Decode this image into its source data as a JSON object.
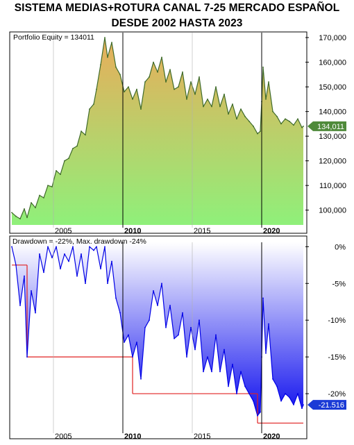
{
  "title_line1": "SISTEMA MEDIAS+ROTURA CANAL 7-25 MERCADO ESPAÑOL",
  "title_line2": "DESDE 2002 HASTA 2023",
  "colors": {
    "equity_line": "#3f6b2a",
    "equity_fill_top": "#e8ad5a",
    "equity_fill_bottom": "#8ff07a",
    "equity_tag": "#4f8a3a",
    "drawdown_line": "#0000e6",
    "drawdown_fill_top": "#ffffff",
    "drawdown_fill_bottom": "#1010ee",
    "max_drawdown_line": "#e02020",
    "drawdown_tag": "#1a3ad6"
  },
  "chart_data": [
    {
      "type": "area",
      "inset_label": "Portfolio Equity = 134011",
      "current_value_label": "134,011",
      "x_ticks": [
        "2005",
        "2010",
        "2015",
        "2020"
      ],
      "x_ticks_bold": [
        "2010",
        "2020"
      ],
      "y_ticks": [
        "100,000",
        "110,000",
        "120,000",
        "130,000",
        "140,000",
        "150,000",
        "160,000",
        "170,000"
      ],
      "ylim": [
        94000,
        172000
      ],
      "xlim": [
        2001.9,
        2023.2
      ],
      "grid": false,
      "x": [
        2002.0,
        2002.3,
        2002.6,
        2002.9,
        2003.1,
        2003.4,
        2003.7,
        2004.0,
        2004.3,
        2004.6,
        2004.9,
        2005.2,
        2005.5,
        2005.8,
        2006.1,
        2006.4,
        2006.7,
        2007.0,
        2007.3,
        2007.6,
        2007.9,
        2008.1,
        2008.4,
        2008.7,
        2008.9,
        2009.2,
        2009.5,
        2009.8,
        2010.1,
        2010.4,
        2010.7,
        2011.0,
        2011.3,
        2011.6,
        2011.9,
        2012.2,
        2012.5,
        2012.8,
        2013.1,
        2013.4,
        2013.7,
        2014.0,
        2014.3,
        2014.6,
        2014.9,
        2015.2,
        2015.5,
        2015.8,
        2016.1,
        2016.4,
        2016.7,
        2017.0,
        2017.3,
        2017.6,
        2017.9,
        2018.2,
        2018.5,
        2018.8,
        2019.1,
        2019.4,
        2019.7,
        2019.9,
        2020.0,
        2020.1,
        2020.3,
        2020.5,
        2020.8,
        2021.1,
        2021.4,
        2021.7,
        2022.0,
        2022.3,
        2022.6,
        2022.9,
        2023.0
      ],
      "y": [
        99000,
        97500,
        96500,
        100500,
        97000,
        103000,
        101000,
        106000,
        105000,
        110000,
        109500,
        116000,
        114500,
        120000,
        121000,
        125000,
        126000,
        132000,
        130500,
        141000,
        143000,
        149000,
        159000,
        170000,
        162000,
        168000,
        158000,
        155000,
        148000,
        150000,
        145000,
        149000,
        141000,
        152000,
        154000,
        160000,
        156000,
        162000,
        152000,
        157000,
        149000,
        150000,
        156000,
        145000,
        152000,
        147000,
        154000,
        142000,
        145000,
        142000,
        150000,
        142000,
        147000,
        139000,
        143000,
        137000,
        141000,
        138000,
        136000,
        134000,
        131000,
        132000,
        144000,
        158000,
        145000,
        152000,
        140000,
        138000,
        135000,
        137000,
        136000,
        134500,
        137000,
        133500,
        134011
      ]
    },
    {
      "type": "area",
      "inset_label": "Drawdown = -22%, Max. drawdown -24%",
      "current_value_label": "-21.516",
      "x_ticks": [
        "2005",
        "2010",
        "2015",
        "2020"
      ],
      "x_ticks_bold": [
        "2010",
        "2020"
      ],
      "y_ticks": [
        "0%",
        "-5%",
        "-10%",
        "-15%",
        "-20%"
      ],
      "ylim": [
        -25.0,
        0.6
      ],
      "xlim": [
        2001.9,
        2023.2
      ],
      "grid": false,
      "x": [
        2002.0,
        2002.3,
        2002.6,
        2002.9,
        2003.1,
        2003.4,
        2003.7,
        2004.0,
        2004.3,
        2004.6,
        2004.9,
        2005.2,
        2005.5,
        2005.8,
        2006.1,
        2006.4,
        2006.7,
        2007.0,
        2007.3,
        2007.6,
        2007.9,
        2008.1,
        2008.4,
        2008.7,
        2008.9,
        2009.2,
        2009.5,
        2009.8,
        2010.1,
        2010.4,
        2010.7,
        2011.0,
        2011.3,
        2011.6,
        2011.9,
        2012.2,
        2012.5,
        2012.8,
        2013.1,
        2013.4,
        2013.7,
        2014.0,
        2014.3,
        2014.6,
        2014.9,
        2015.2,
        2015.5,
        2015.8,
        2016.1,
        2016.4,
        2016.7,
        2017.0,
        2017.3,
        2017.6,
        2017.9,
        2018.2,
        2018.5,
        2018.8,
        2019.1,
        2019.4,
        2019.7,
        2019.9,
        2020.0,
        2020.1,
        2020.3,
        2020.5,
        2020.8,
        2021.1,
        2021.4,
        2021.7,
        2022.0,
        2022.3,
        2022.6,
        2022.9,
        2023.0
      ],
      "y": [
        0,
        -2.5,
        -8.0,
        -4.0,
        -15.0,
        -6.0,
        -9.0,
        -1.0,
        -3.5,
        0,
        -1.5,
        0,
        -3.0,
        -1.0,
        -2.0,
        0,
        -4.0,
        -1.0,
        -5.0,
        0,
        -0.5,
        0,
        -3.0,
        0,
        -5.0,
        -2.0,
        -7.0,
        -9.0,
        -13.0,
        -12.0,
        -15.0,
        -13.0,
        -18.0,
        -11.0,
        -10.0,
        -6.0,
        -8.0,
        -5.0,
        -11.0,
        -8.0,
        -12.5,
        -12.0,
        -9.0,
        -15.0,
        -11.0,
        -14.0,
        -10.0,
        -17.0,
        -15.0,
        -17.0,
        -12.0,
        -17.0,
        -14.0,
        -19.0,
        -16.0,
        -20.0,
        -17.0,
        -19.0,
        -20.0,
        -21.0,
        -23.0,
        -22.5,
        -15.0,
        -7.0,
        -14.5,
        -10.5,
        -18.0,
        -19.0,
        -21.0,
        -20.0,
        -20.5,
        -21.5,
        -20.0,
        -22.0,
        -21.516
      ],
      "max_drawdown_steps": [
        {
          "x0": 2002.0,
          "x1": 2003.1,
          "y": -2.5
        },
        {
          "x0": 2003.1,
          "x1": 2010.7,
          "y": -15.0
        },
        {
          "x0": 2010.7,
          "x1": 2019.7,
          "y": -20.0
        },
        {
          "x0": 2019.7,
          "x1": 2023.0,
          "y": -24.0
        }
      ]
    }
  ]
}
